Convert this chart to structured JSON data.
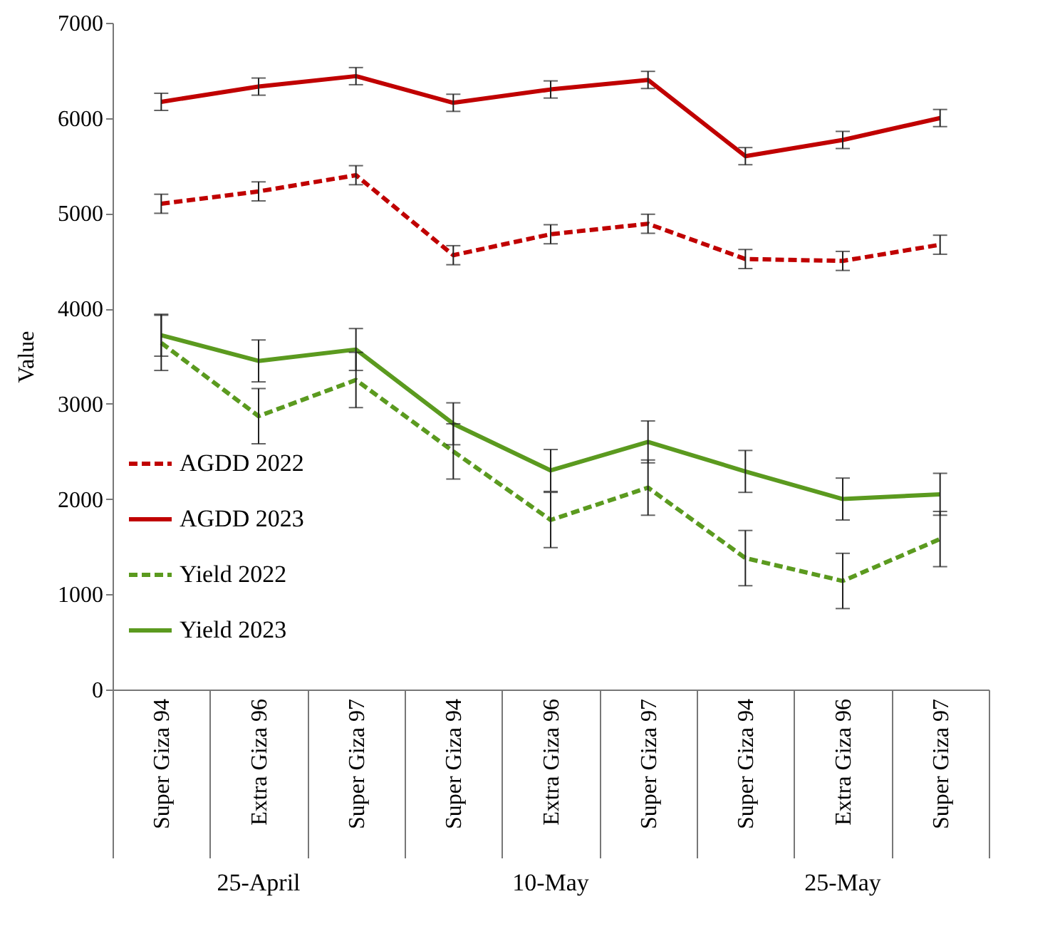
{
  "chart_data": {
    "type": "line",
    "ylabel": "Value",
    "categories": [
      "Super Giza 94",
      "Extra Giza 96",
      "Super Giza 97",
      "Super Giza 94",
      "Extra Giza 96",
      "Super Giza 97",
      "Super Giza 94",
      "Extra Giza 96",
      "Super Giza 97"
    ],
    "series": [
      {
        "name": "AGDD 2022",
        "color": "#c00000",
        "line_style": "dashed",
        "values": [
          5100,
          5230,
          5400,
          4560,
          4780,
          4890,
          4520,
          4500,
          4670
        ],
        "errors": [
          100,
          100,
          100,
          100,
          100,
          100,
          100,
          100,
          100
        ]
      },
      {
        "name": "AGDD 2023",
        "color": "#c00000",
        "line_style": "solid",
        "values": [
          6170,
          6330,
          6440,
          6160,
          6300,
          6400,
          5600,
          5770,
          6000
        ],
        "errors": [
          90,
          90,
          90,
          90,
          90,
          90,
          90,
          90,
          90
        ]
      },
      {
        "name": "Yield 2022",
        "color": "#5b9a1f",
        "line_style": "dashed",
        "values": [
          3640,
          2870,
          3250,
          2500,
          1780,
          2120,
          1380,
          1140,
          1580
        ],
        "errors": [
          290,
          290,
          290,
          290,
          290,
          290,
          290,
          290,
          290
        ]
      },
      {
        "name": "Yield 2023",
        "color": "#5b9a1f",
        "line_style": "solid",
        "values": [
          3720,
          3450,
          3570,
          2790,
          2300,
          2600,
          2290,
          2000,
          2050
        ],
        "errors": [
          220,
          220,
          220,
          220,
          220,
          220,
          220,
          220,
          220
        ]
      }
    ],
    "ylim": [
      0,
      7000
    ],
    "yticks": [
      0,
      1000,
      2000,
      3000,
      4000,
      5000,
      6000,
      7000
    ],
    "grid": false,
    "legend": "bottom left",
    "marker": "none",
    "annotations": [
      "25-April",
      "10-May",
      "25-May"
    ]
  }
}
